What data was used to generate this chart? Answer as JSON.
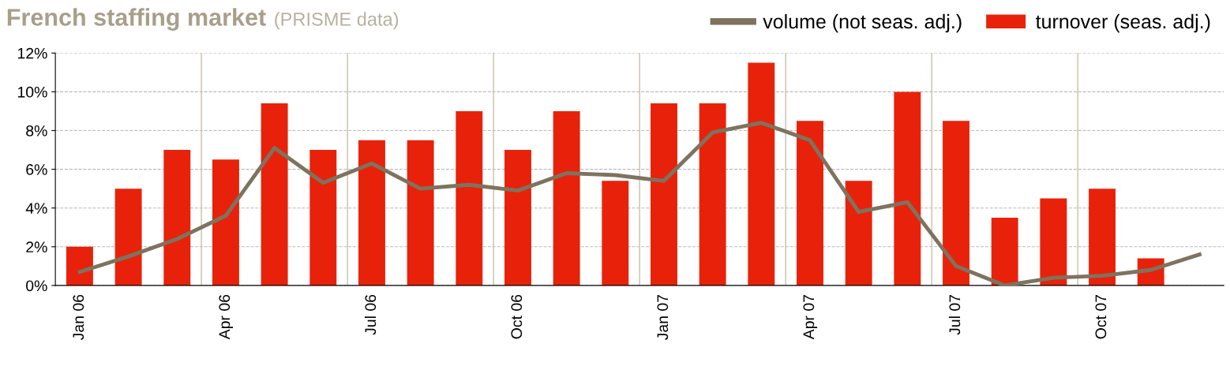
{
  "chart_data": {
    "type": "bar",
    "title": "French staffing market",
    "subtitle": "(PRISME data)",
    "categories": [
      "Jan 06",
      null,
      null,
      "Apr 06",
      null,
      null,
      "Jul 06",
      null,
      null,
      "Oct 06",
      null,
      null,
      "Jan 07",
      null,
      null,
      "Apr 07",
      null,
      null,
      "Jul 07",
      null,
      null,
      "Oct 07",
      null,
      null
    ],
    "series": [
      {
        "name": "volume (not seas. adj.)",
        "type": "line",
        "color": "#7d735f",
        "values": [
          0.7,
          1.5,
          2.4,
          3.6,
          7.1,
          5.3,
          6.3,
          5.0,
          5.2,
          4.9,
          5.8,
          5.7,
          5.4,
          7.9,
          8.4,
          7.5,
          3.8,
          4.3,
          1.0,
          0.0,
          0.4,
          0.5,
          0.8,
          1.6
        ]
      },
      {
        "name": "turnover (seas. adj.)",
        "color": "#e8220a",
        "values": [
          2.0,
          5.0,
          7.0,
          6.5,
          9.4,
          7.0,
          7.5,
          7.5,
          9.0,
          7.0,
          9.0,
          5.4,
          9.4,
          9.4,
          11.5,
          8.5,
          5.4,
          10.0,
          8.5,
          3.5,
          4.5,
          5.0,
          1.4,
          null
        ]
      }
    ],
    "ylim": [
      0,
      12
    ],
    "yticks": [
      {
        "value": 0,
        "label": "0%"
      },
      {
        "value": 2,
        "label": "2%"
      },
      {
        "value": 4,
        "label": "4%"
      },
      {
        "value": 6,
        "label": "6%"
      },
      {
        "value": 8,
        "label": "8%"
      },
      {
        "value": 10,
        "label": "10%"
      },
      {
        "value": 12,
        "label": "12%"
      }
    ],
    "grid": true,
    "legend": "top right",
    "line_style": "solid",
    "marker": "none"
  }
}
